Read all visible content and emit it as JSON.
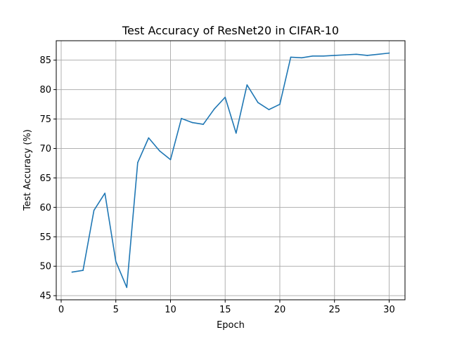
{
  "chart_data": {
    "type": "line",
    "title": "Test Accuracy of ResNet20 in CIFAR-10",
    "xlabel": "Epoch",
    "ylabel": "Test Accuracy (%)",
    "xlim": [
      -0.45,
      31.45
    ],
    "ylim": [
      44.3,
      88.3
    ],
    "x_ticks": [
      0,
      5,
      10,
      15,
      20,
      25,
      30
    ],
    "y_ticks": [
      45,
      50,
      55,
      60,
      65,
      70,
      75,
      80,
      85
    ],
    "grid": true,
    "x": [
      1,
      2,
      3,
      4,
      5,
      6,
      7,
      8,
      9,
      10,
      11,
      12,
      13,
      14,
      15,
      16,
      17,
      18,
      19,
      20,
      21,
      22,
      23,
      24,
      25,
      26,
      27,
      28,
      29,
      30
    ],
    "series": [
      {
        "color": "#1f77b4",
        "values": [
          49.0,
          49.3,
          59.5,
          62.4,
          50.8,
          46.4,
          67.6,
          71.8,
          69.6,
          68.1,
          75.1,
          74.4,
          74.1,
          76.7,
          78.7,
          72.6,
          80.8,
          77.8,
          76.6,
          77.5,
          85.5,
          85.4,
          85.7,
          85.7,
          85.8,
          85.9,
          86.0,
          85.8,
          86.0,
          86.2
        ]
      }
    ]
  }
}
